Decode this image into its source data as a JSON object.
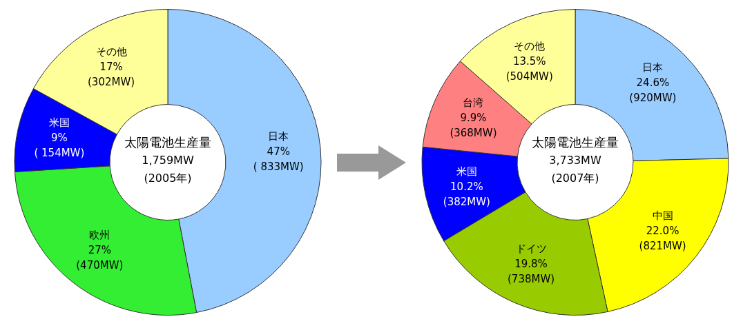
{
  "chart_data": [
    {
      "type": "donut",
      "title": "太陽電池生産量",
      "annotations": [
        "1,759MW",
        "(2005年)"
      ],
      "categories": [
        "日本",
        "欧州",
        "米国",
        "その他"
      ],
      "values": [
        47,
        27,
        9,
        17
      ],
      "colors": [
        "#99ccff",
        "#33ee33",
        "#0000ff",
        "#ffff99"
      ],
      "value_labels": [
        "47%\n( 833MW)",
        "27%\n(470MW)",
        "9%\n( 154MW)",
        "17%\n(302MW)"
      ]
    },
    {
      "type": "donut",
      "title": "太陽電池生産量",
      "annotations": [
        "3,733MW",
        "(2007年)"
      ],
      "categories": [
        "日本",
        "中国",
        "ドイツ",
        "米国",
        "台湾",
        "その他"
      ],
      "values": [
        24.6,
        22.0,
        19.8,
        10.2,
        9.9,
        13.5
      ],
      "colors": [
        "#99ccff",
        "#ffff00",
        "#99cc00",
        "#0000ff",
        "#ff8080",
        "#ffff99"
      ],
      "value_labels": [
        "24.6%\n(920MW)",
        "22.0%\n(821MW)",
        "19.8%\n(738MW)",
        "10.2%\n(382MW)",
        "9.9%\n(368MW)",
        "13.5%\n(504MW)"
      ]
    }
  ]
}
